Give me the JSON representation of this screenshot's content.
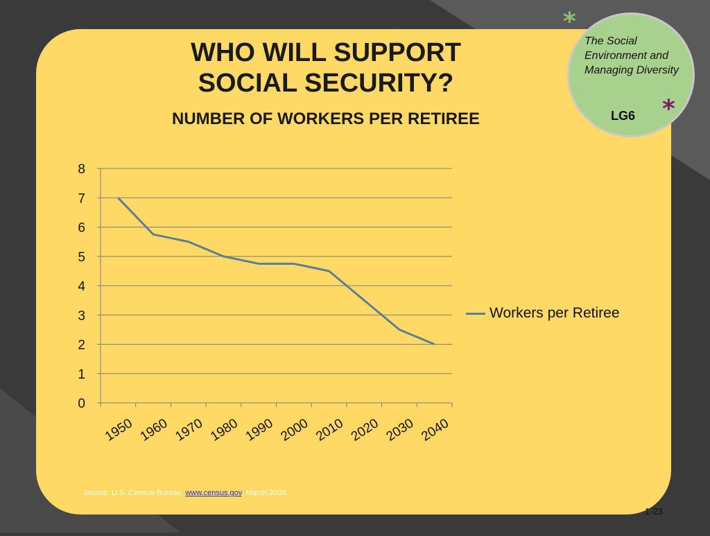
{
  "slide": {
    "title_line1": "WHO WILL SUPPORT",
    "title_line2": "SOCIAL SECURITY?",
    "subtitle": "NUMBER OF WORKERS PER RETIREE",
    "page_number": "1-23",
    "source_prefix": "Source: U.S. Census Bureau, ",
    "source_link": "www.census.gov",
    "source_suffix": ", March 2009."
  },
  "badge": {
    "text": "The Social Environment and Managing Diversity",
    "code": "LG6",
    "asterisk": "*"
  },
  "colors": {
    "background": "#3a3a3a",
    "panel": "#ffd966",
    "badge": "#a9d18e",
    "series_line": "#5b7f97",
    "asterisk_green": "#8fc06d",
    "asterisk_purple": "#7a1f6f"
  },
  "chart_data": {
    "type": "line",
    "title": "",
    "xlabel": "",
    "ylabel": "",
    "categories": [
      "1950",
      "1960",
      "1970",
      "1980",
      "1990",
      "2000",
      "2010",
      "2020",
      "2030",
      "2040"
    ],
    "series": [
      {
        "name": "Workers per Retiree",
        "values": [
          7.0,
          5.75,
          5.5,
          5.0,
          4.75,
          4.75,
          4.5,
          3.5,
          2.5,
          2.0
        ]
      }
    ],
    "ylim": [
      0,
      8
    ],
    "yticks": [
      "0",
      "1",
      "2",
      "3",
      "4",
      "5",
      "6",
      "7",
      "8"
    ],
    "grid": true,
    "legend": "right"
  }
}
